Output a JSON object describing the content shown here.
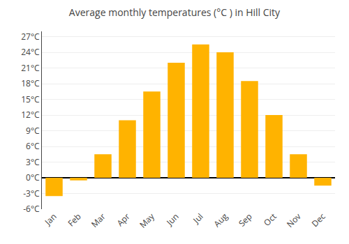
{
  "chart_data": {
    "type": "bar",
    "title": "Average monthly temperatures (°C ) in Hill City",
    "categories": [
      "Jan",
      "Feb",
      "Mar",
      "Apr",
      "May",
      "Jun",
      "Jul",
      "Aug",
      "Sep",
      "Oct",
      "Nov",
      "Dec"
    ],
    "values": [
      -3.5,
      -0.5,
      4.5,
      11.0,
      16.5,
      22.0,
      25.5,
      24.0,
      18.5,
      12.0,
      4.5,
      -1.5
    ],
    "color": "#FFB300",
    "ylim": [
      -6,
      28
    ],
    "yticks": [
      {
        "value": -6,
        "label": "-6°C"
      },
      {
        "value": -3,
        "label": "-3°C"
      },
      {
        "value": 0,
        "label": "0°C"
      },
      {
        "value": 3,
        "label": "3°C"
      },
      {
        "value": 6,
        "label": "6°C"
      },
      {
        "value": 9,
        "label": "9°C"
      },
      {
        "value": 12,
        "label": "12°C"
      },
      {
        "value": 15,
        "label": "15°C"
      },
      {
        "value": 18,
        "label": "18°C"
      },
      {
        "value": 21,
        "label": "21°C"
      },
      {
        "value": 24,
        "label": "24°C"
      },
      {
        "value": 27,
        "label": "27°C"
      }
    ],
    "grid": true
  }
}
